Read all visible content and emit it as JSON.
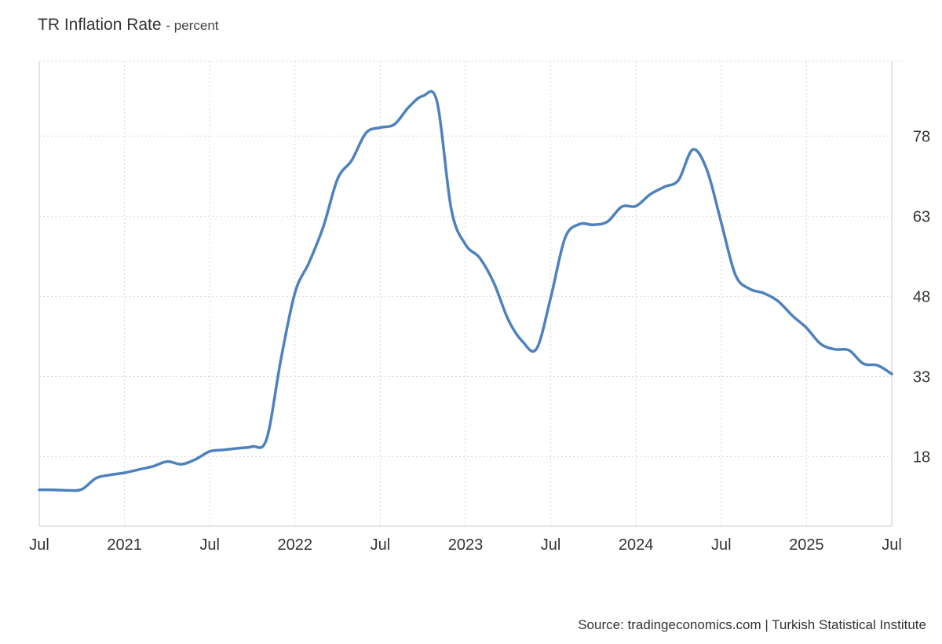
{
  "chart_data": {
    "type": "line",
    "title": "TR Inflation Rate",
    "unit_label": "- percent",
    "source": "Source: tradingeconomics.com | Turkish Statistical Institute",
    "x_tick_labels": [
      "Jul",
      "2021",
      "Jul",
      "2022",
      "Jul",
      "2023",
      "Jul",
      "2024",
      "Jul",
      "2025",
      "Jul"
    ],
    "x_tick_dates": [
      "2020-07",
      "2021-01",
      "2021-07",
      "2022-01",
      "2022-07",
      "2023-01",
      "2023-07",
      "2024-01",
      "2024-07",
      "2025-01",
      "2025-07"
    ],
    "y_ticks": [
      18,
      33,
      48,
      63,
      78
    ],
    "ylim": [
      5,
      92
    ],
    "grid": true,
    "y_axis_side": "right",
    "line_color": "#4f81bd",
    "series": [
      {
        "x": [
          "2020-07",
          "2020-08",
          "2020-09",
          "2020-10",
          "2020-11",
          "2020-12",
          "2021-01",
          "2021-02",
          "2021-03",
          "2021-04",
          "2021-05",
          "2021-06",
          "2021-07",
          "2021-08",
          "2021-09",
          "2021-10",
          "2021-11",
          "2021-12",
          "2022-01",
          "2022-02",
          "2022-03",
          "2022-04",
          "2022-05",
          "2022-06",
          "2022-07",
          "2022-08",
          "2022-09",
          "2022-10",
          "2022-11",
          "2022-12",
          "2023-01",
          "2023-02",
          "2023-03",
          "2023-04",
          "2023-05",
          "2023-06",
          "2023-07",
          "2023-08",
          "2023-09",
          "2023-10",
          "2023-11",
          "2023-12",
          "2024-01",
          "2024-02",
          "2024-03",
          "2024-04",
          "2024-05",
          "2024-06",
          "2024-07",
          "2024-08",
          "2024-09",
          "2024-10",
          "2024-11",
          "2024-12",
          "2025-01",
          "2025-02",
          "2025-03",
          "2025-04",
          "2025-05",
          "2025-06",
          "2025-07"
        ],
        "values": [
          11.8,
          11.8,
          11.7,
          11.9,
          14.0,
          14.6,
          15.0,
          15.6,
          16.2,
          17.1,
          16.6,
          17.5,
          19.0,
          19.3,
          19.6,
          19.9,
          21.3,
          36.1,
          48.7,
          54.4,
          61.1,
          70.0,
          73.5,
          78.6,
          79.6,
          80.2,
          83.4,
          85.5,
          84.4,
          64.3,
          57.7,
          55.2,
          50.5,
          43.7,
          39.6,
          38.2,
          47.8,
          58.9,
          61.5,
          61.4,
          62.0,
          64.8,
          64.9,
          67.1,
          68.5,
          69.8,
          75.5,
          71.6,
          61.8,
          52.0,
          49.4,
          48.6,
          47.1,
          44.4,
          42.1,
          39.1,
          38.1,
          37.9,
          35.4,
          35.1,
          33.5
        ]
      }
    ]
  }
}
